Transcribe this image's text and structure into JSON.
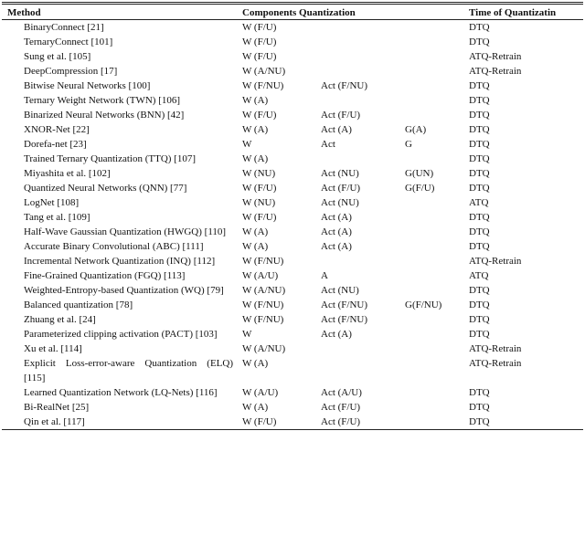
{
  "table": {
    "headers": {
      "method": "Method",
      "components": "Components Quantization",
      "time": "Time of Quantizatin"
    },
    "rows": [
      {
        "method": "BinaryConnect [21]",
        "weights": "W (F/U)",
        "time": "DTQ"
      },
      {
        "method": "TernaryConnect [101]",
        "weights": "W (F/U)",
        "time": "DTQ"
      },
      {
        "method": "Sung et al. [105]",
        "weights": "W (F/U)",
        "time": "ATQ-Retrain"
      },
      {
        "method": "DeepCompression [17]",
        "weights": "W (A/NU)",
        "time": "ATQ-Retrain"
      },
      {
        "method": "Bitwise Neural Networks [100]",
        "weights": "W (F/NU)",
        "activations": "Act (F/NU)",
        "time": "DTQ"
      },
      {
        "method": "Ternary Weight Network (TWN) [106]",
        "weights": "W (A)",
        "time": "DTQ"
      },
      {
        "method": "Binarized Neural Networks (BNN) [42]",
        "weights": "W (F/U)",
        "activations": "Act (F/U)",
        "time": "DTQ"
      },
      {
        "method": "XNOR-Net [22]",
        "weights": "W (A)",
        "activations": "Act (A)",
        "gradients": "G(A)",
        "time": "DTQ"
      },
      {
        "method": "Dorefa-net [23]",
        "weights": "W",
        "activations": "Act",
        "gradients": "G",
        "time": "DTQ"
      },
      {
        "method": "Trained Ternary Quantization (TTQ) [107]",
        "weights": "W (A)",
        "time": "DTQ"
      },
      {
        "method": "Miyashita et al. [102]",
        "weights": "W (NU)",
        "activations": "Act (NU)",
        "gradients": "G(UN)",
        "time": "DTQ"
      },
      {
        "method": "Quantized Neural Networks (QNN) [77]",
        "weights": "W (F/U)",
        "activations": "Act (F/U)",
        "gradients": "G(F/U)",
        "time": "DTQ"
      },
      {
        "method": "LogNet [108]",
        "weights": "W (NU)",
        "activations": "Act (NU)",
        "time": "ATQ"
      },
      {
        "method": "Tang et al. [109]",
        "weights": "W (F/U)",
        "activations": "Act (A)",
        "time": "DTQ"
      },
      {
        "method": "Half-Wave Gaussian Quantization (HWGQ) [110]",
        "weights": "W (A)",
        "activations": "Act (A)",
        "time": "DTQ"
      },
      {
        "method": "Accurate Binary Convolutional (ABC) [111]",
        "weights": "W (A)",
        "activations": "Act (A)",
        "time": "DTQ"
      },
      {
        "method": "Incremental Network Quantization (INQ) [112]",
        "weights": "W (F/NU)",
        "time": "ATQ-Retrain"
      },
      {
        "method": "Fine-Grained Quantization (FGQ) [113]",
        "weights": "W (A/U)",
        "activations": "A",
        "time": "ATQ"
      },
      {
        "method": "Weighted-Entropy-based Quantization (WQ) [79]",
        "weights": "W (A/NU)",
        "activations": "Act (NU)",
        "time": "DTQ"
      },
      {
        "method": "Balanced quantization [78]",
        "weights": "W (F/NU)",
        "activations": "Act (F/NU)",
        "gradients": "G(F/NU)",
        "time": "DTQ"
      },
      {
        "method": "Zhuang et al. [24]",
        "weights": "W (F/NU)",
        "activations": "Act (F/NU)",
        "time": "DTQ"
      },
      {
        "method": "Parameterized clipping activation (PACT) [103]",
        "weights": "W",
        "activations": "Act (A)",
        "time": "DTQ"
      },
      {
        "method": "Xu et al. [114]",
        "weights": "W (A/NU)",
        "time": "ATQ-Retrain"
      },
      {
        "method": "Explicit Loss-error-aware Quantization (ELQ) [115]",
        "weights": "W (A)",
        "time": "ATQ-Retrain"
      },
      {
        "method": "Learned Quantization Network (LQ-Nets) [116]",
        "weights": "W (A/U)",
        "activations": "Act (A/U)",
        "time": "DTQ"
      },
      {
        "method": "Bi-RealNet [25]",
        "weights": "W (A)",
        "activations": "Act (F/U)",
        "time": "DTQ"
      },
      {
        "method": "Qin et al. [117]",
        "weights": "W (F/U)",
        "activations": "Act (F/U)",
        "time": "DTQ"
      }
    ]
  }
}
